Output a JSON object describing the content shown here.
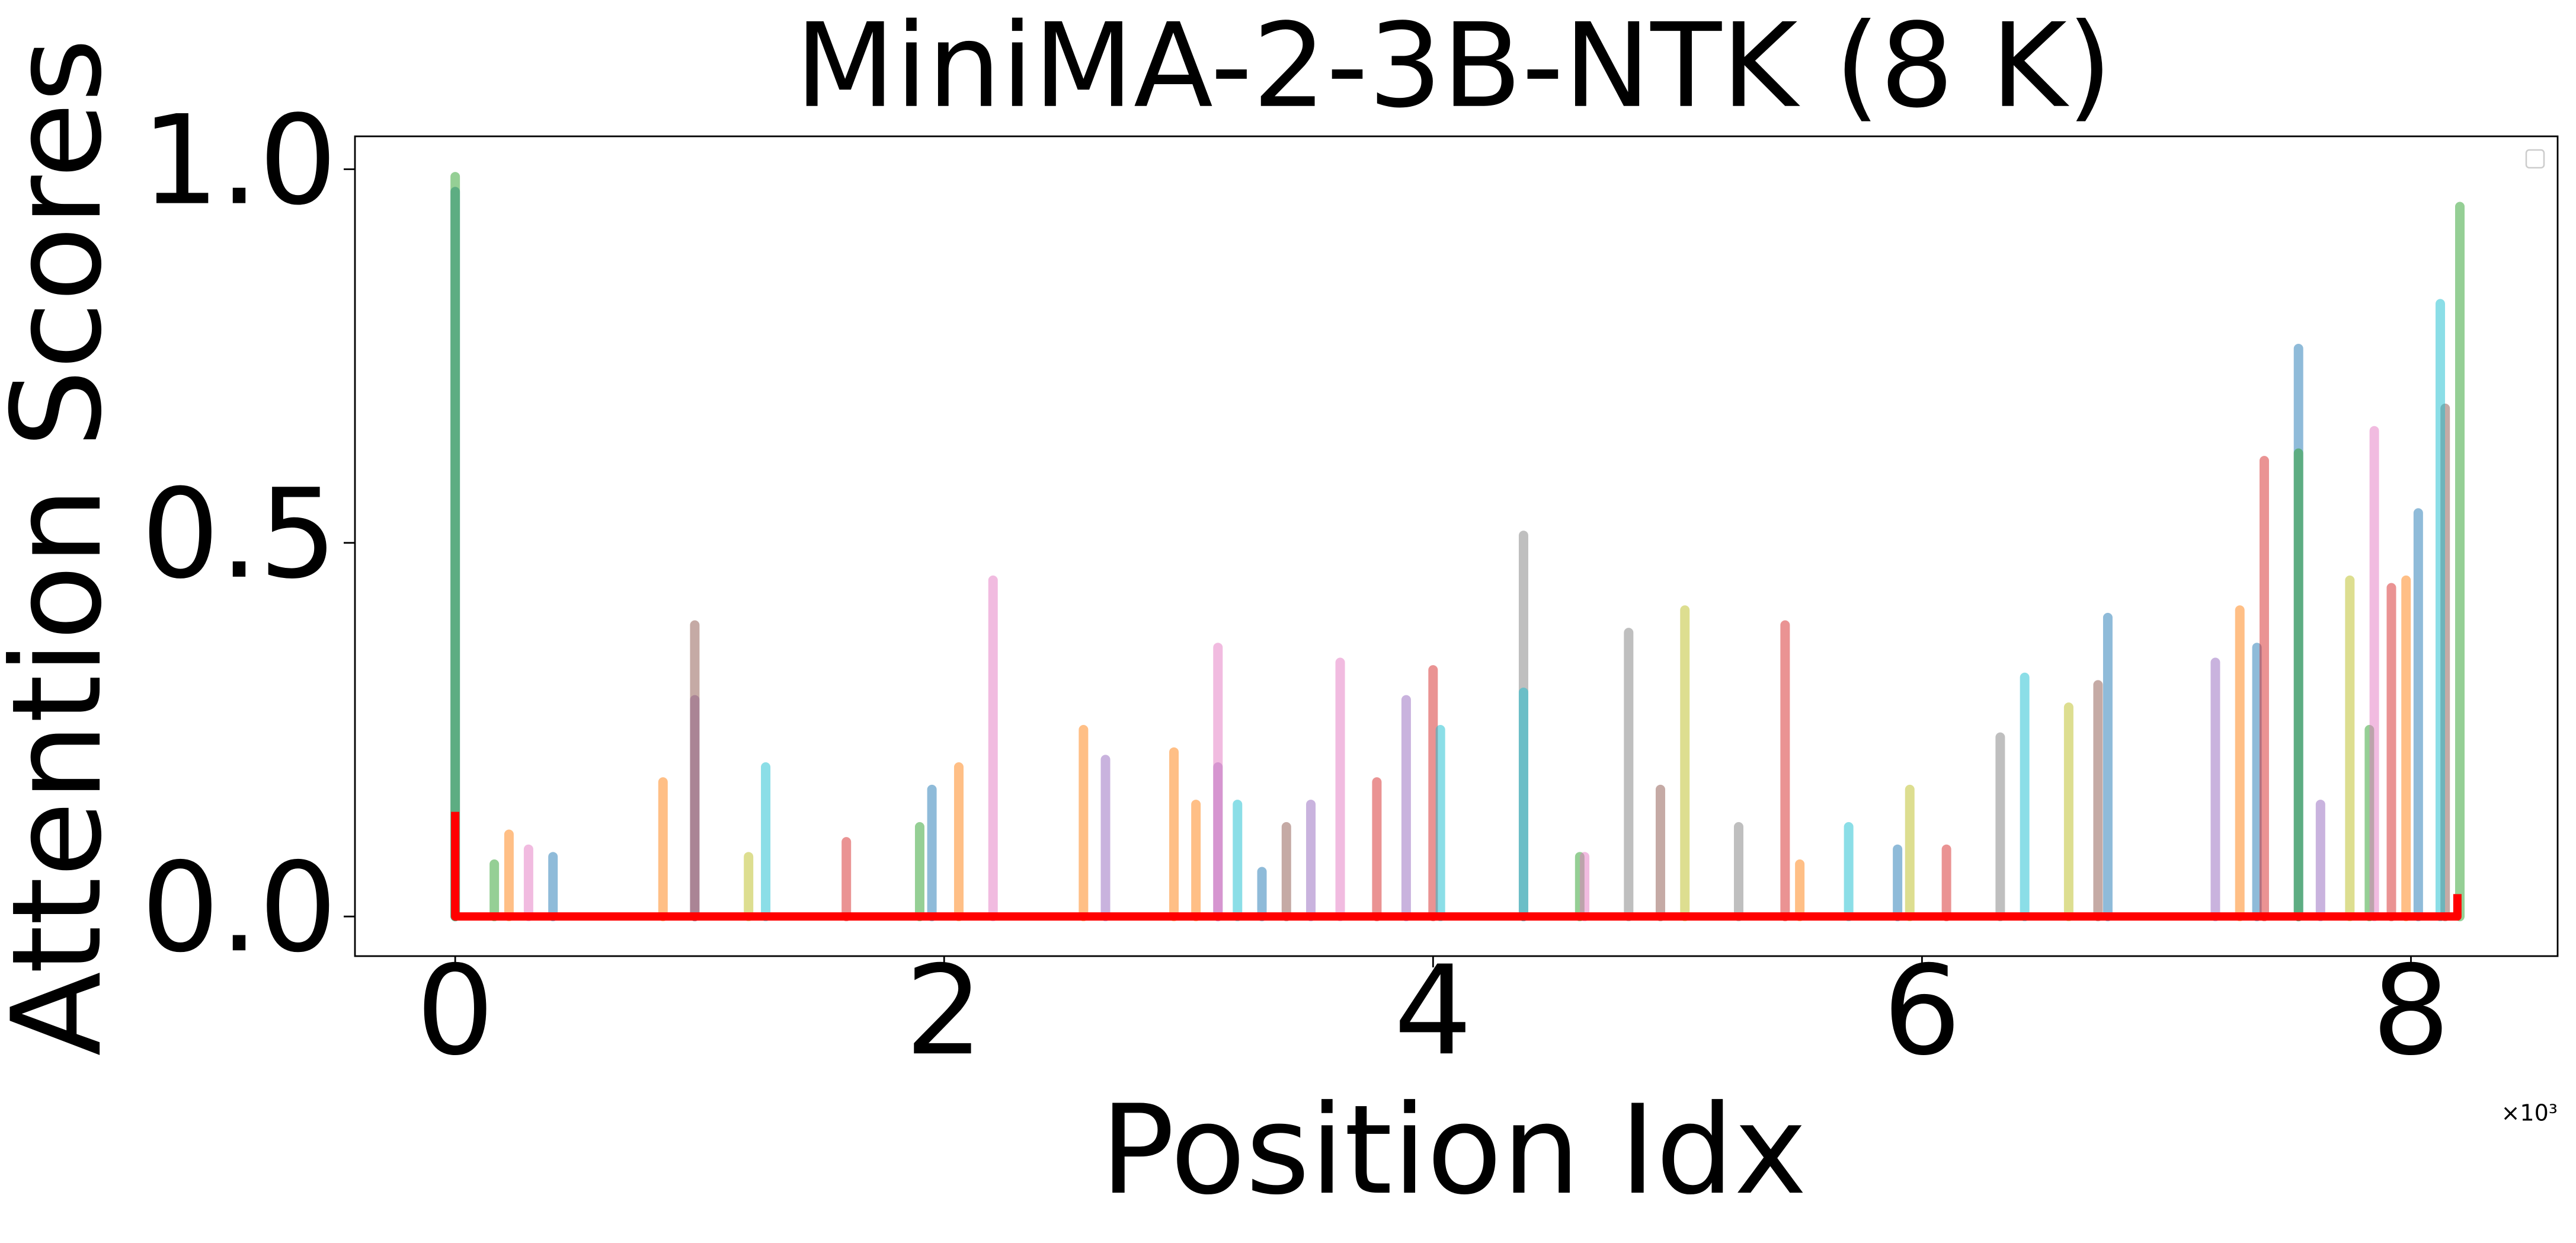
{
  "chart_data": {
    "type": "line",
    "title": "MiniMA-2-3B-NTK (8 K)",
    "xlabel": "Position Idx",
    "ylabel": "Attention Scores",
    "x_offset_label": "×10³",
    "xlim": [
      -0.41,
      8.6
    ],
    "xticks": [
      0,
      2,
      4,
      6,
      8
    ],
    "ylim": [
      -0.053,
      1.044
    ],
    "yticks": [
      {
        "value": 0,
        "label": "0.0"
      },
      {
        "value": 0.5,
        "label": "0.5"
      },
      {
        "value": 1,
        "label": "1.0"
      }
    ],
    "legend": "upper right",
    "series": [
      {
        "type": "stem",
        "color": "#1f77b4",
        "x": [
          0,
          7.54,
          8.03,
          6.76,
          1.95,
          7.37,
          0.4,
          3.3,
          5.9
        ],
        "values": [
          0.97,
          0.76,
          0.54,
          0.4,
          0.17,
          0.36,
          0.08,
          0.06,
          0.09
        ]
      },
      {
        "type": "stem",
        "color": "#ff7f0e",
        "x": [
          2.57,
          2.94,
          0.85,
          2.06,
          7.3,
          7.98,
          3.03,
          0.22,
          5.5
        ],
        "values": [
          0.25,
          0.22,
          0.18,
          0.2,
          0.41,
          0.45,
          0.15,
          0.11,
          0.07
        ]
      },
      {
        "type": "stem",
        "color": "#2ca02c",
        "x": [
          0,
          8.2,
          7.54,
          1.9,
          7.83,
          4.6,
          0.16
        ],
        "values": [
          0.99,
          0.95,
          0.62,
          0.12,
          0.25,
          0.08,
          0.07
        ]
      },
      {
        "type": "stem",
        "color": "#d62728",
        "x": [
          7.4,
          4.0,
          5.44,
          3.77,
          7.92,
          1.6,
          6.1
        ],
        "values": [
          0.61,
          0.33,
          0.39,
          0.18,
          0.44,
          0.1,
          0.09
        ]
      },
      {
        "type": "stem",
        "color": "#9467bd",
        "x": [
          0.98,
          2.66,
          3.89,
          7.2,
          3.12,
          3.5,
          7.63
        ],
        "values": [
          0.29,
          0.21,
          0.29,
          0.34,
          0.2,
          0.15,
          0.15
        ]
      },
      {
        "type": "stem",
        "color": "#8c564b",
        "x": [
          0.98,
          6.72,
          8.14,
          4.93,
          3.4
        ],
        "values": [
          0.39,
          0.31,
          0.68,
          0.17,
          0.12
        ]
      },
      {
        "type": "stem",
        "color": "#e377c2",
        "x": [
          2.2,
          3.12,
          3.62,
          7.85,
          4.62,
          0.3
        ],
        "values": [
          0.45,
          0.36,
          0.34,
          0.65,
          0.08,
          0.09
        ]
      },
      {
        "type": "stem",
        "color": "#7f7f7f",
        "x": [
          4.37,
          4.8,
          6.32,
          5.25
        ],
        "values": [
          0.51,
          0.38,
          0.24,
          0.12
        ]
      },
      {
        "type": "stem",
        "color": "#bcbd22",
        "x": [
          5.03,
          7.75,
          6.6,
          5.95,
          1.2
        ],
        "values": [
          0.41,
          0.45,
          0.28,
          0.17,
          0.08
        ]
      },
      {
        "type": "stem",
        "color": "#17becf",
        "x": [
          1.27,
          4.03,
          6.42,
          8.12,
          4.37,
          3.2,
          5.7
        ],
        "values": [
          0.2,
          0.25,
          0.32,
          0.82,
          0.3,
          0.15,
          0.12
        ]
      },
      {
        "type": "line",
        "color": "#ff0000",
        "x": [
          0,
          0,
          8.19,
          8.19
        ],
        "values": [
          0.14,
          0,
          0,
          0.03
        ]
      }
    ]
  }
}
